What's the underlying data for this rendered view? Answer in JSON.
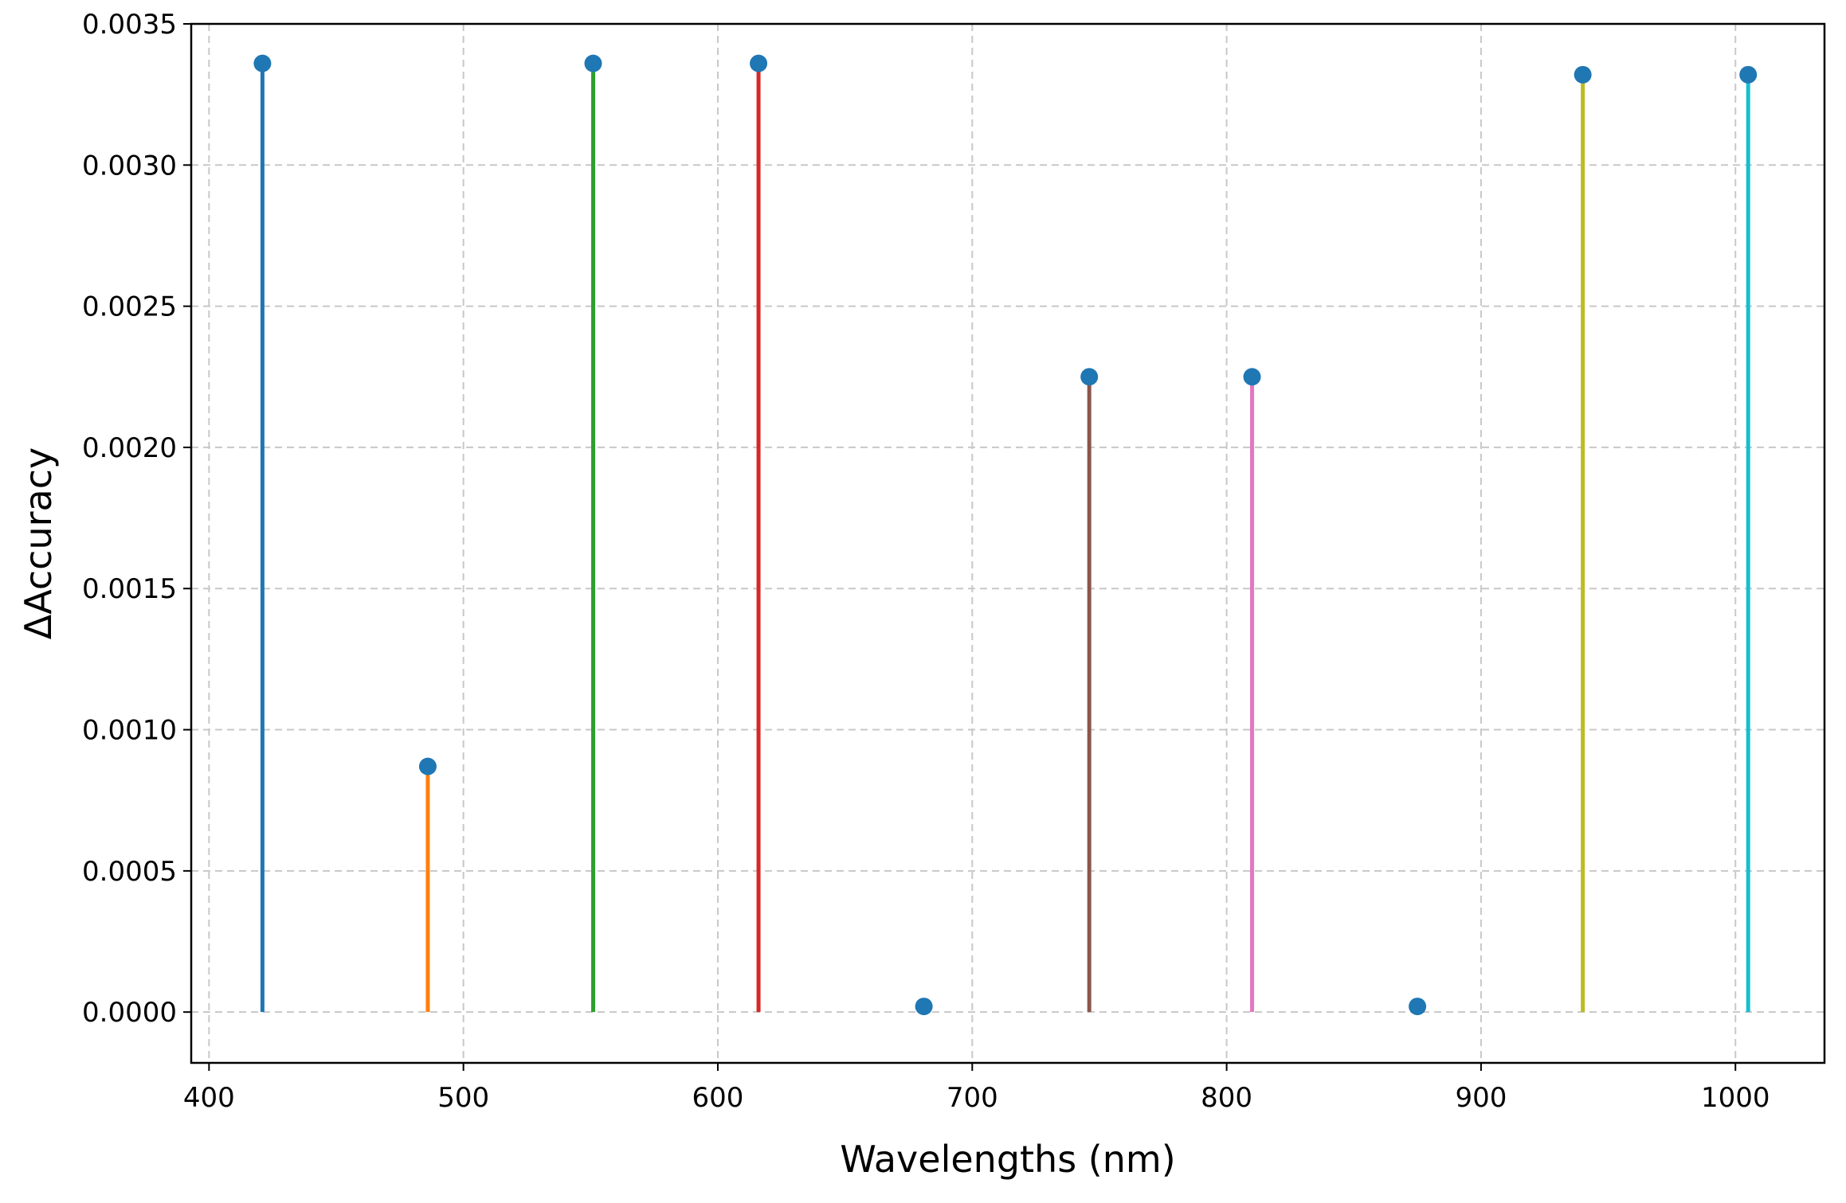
{
  "chart_data": {
    "type": "stem",
    "xlabel": "Wavelengths (nm)",
    "ylabel": "ΔAccuracy",
    "xlim": [
      393,
      1035
    ],
    "ylim": [
      -0.00018,
      0.0035
    ],
    "x_ticks": [
      400,
      500,
      600,
      700,
      800,
      900,
      1000
    ],
    "x_tick_labels": [
      "400",
      "500",
      "600",
      "700",
      "800",
      "900",
      "1000"
    ],
    "y_ticks": [
      0.0,
      0.0005,
      0.001,
      0.0015,
      0.002,
      0.0025,
      0.003,
      0.0035
    ],
    "y_tick_labels": [
      "0.0000",
      "0.0005",
      "0.0010",
      "0.0015",
      "0.0020",
      "0.0025",
      "0.0030",
      "0.0035"
    ],
    "grid": true,
    "marker_color": "#1f77b4",
    "points": [
      {
        "x": 421,
        "y": 0.00336,
        "color": "#1f77b4"
      },
      {
        "x": 486,
        "y": 0.00087,
        "color": "#ff7f0e"
      },
      {
        "x": 551,
        "y": 0.00336,
        "color": "#2ca02c"
      },
      {
        "x": 616,
        "y": 0.00336,
        "color": "#d62728"
      },
      {
        "x": 681,
        "y": 2e-05,
        "color": "#9467bd"
      },
      {
        "x": 746,
        "y": 0.00225,
        "color": "#8c564b"
      },
      {
        "x": 810,
        "y": 0.00225,
        "color": "#e377c2"
      },
      {
        "x": 875,
        "y": 2e-05,
        "color": "#7f7f7f"
      },
      {
        "x": 940,
        "y": 0.00332,
        "color": "#bcbd22"
      },
      {
        "x": 1005,
        "y": 0.00332,
        "color": "#17becf"
      }
    ]
  }
}
